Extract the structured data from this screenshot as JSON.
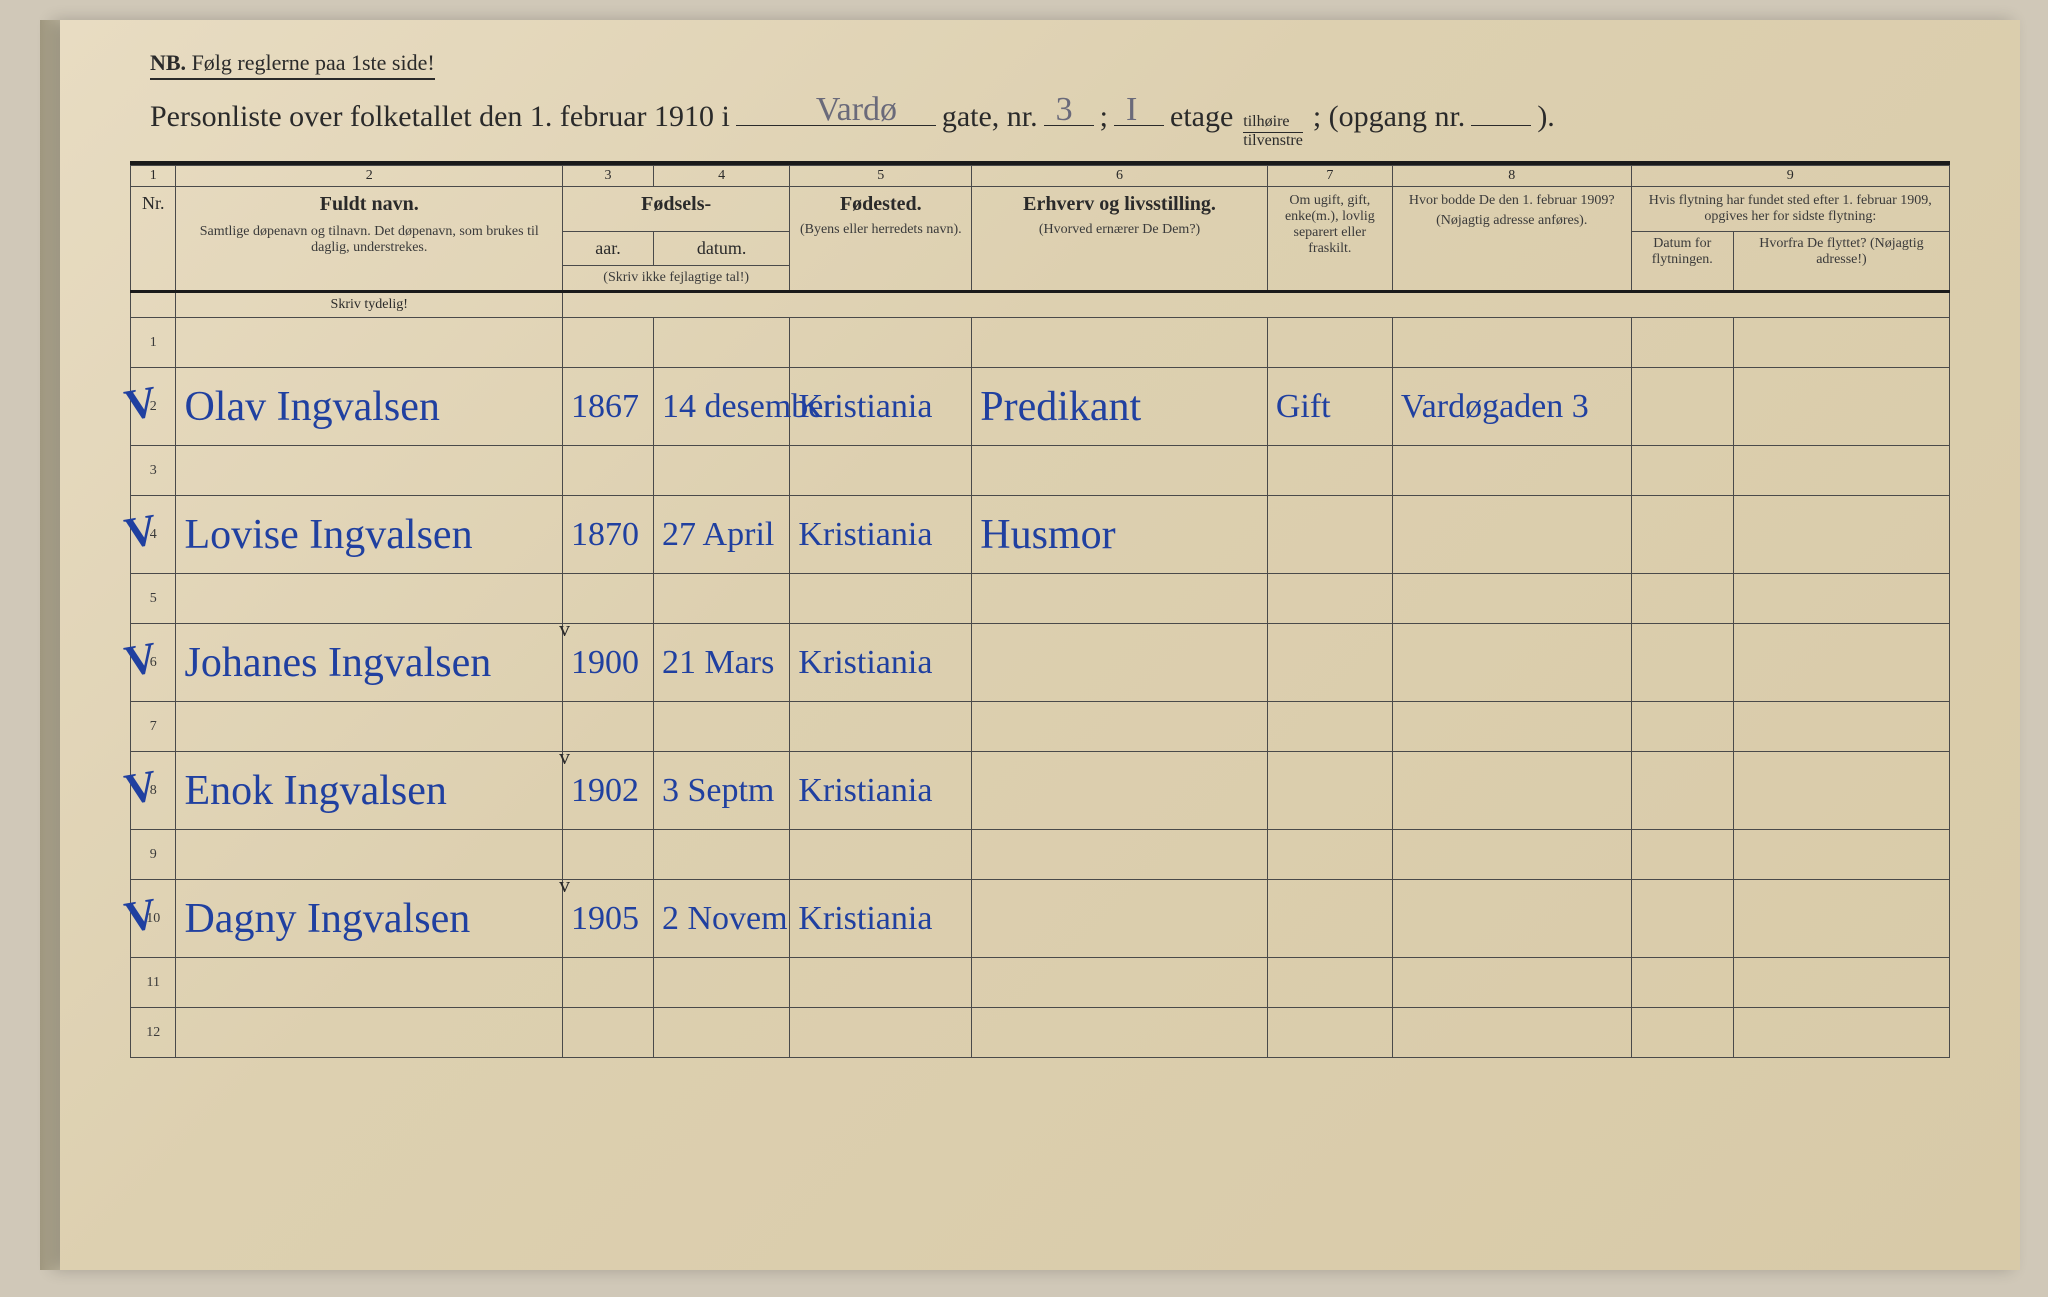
{
  "header": {
    "nb_prefix": "NB.",
    "nb_text": "Følg reglerne paa 1ste side!",
    "title_prefix": "Personliste over folketallet den 1. februar 1910 i",
    "street_hw": "Vardø",
    "gate_label": "gate, nr.",
    "gate_nr": "3",
    "semicolon": ";",
    "etage_nr": "I",
    "etage_label": "etage",
    "tilhoire": "tilhøire",
    "tilvenstre": "tilvenstre",
    "opgang": "; (opgang nr.",
    "opgang_end": ")."
  },
  "columns": {
    "c1": "1",
    "c2": "2",
    "c3": "3",
    "c4": "4",
    "c5": "5",
    "c6": "6",
    "c7": "7",
    "c8": "8",
    "c9": "9",
    "nr": "Nr.",
    "fuldt_navn": "Fuldt navn.",
    "navn_sub": "Samtlige døpenavn og tilnavn. Det døpenavn, som brukes til daglig, understrekes.",
    "fodsels": "Fødsels-",
    "aar": "aar.",
    "datum": "datum.",
    "aar_sub": "(Skriv ikke fejlagtige tal!)",
    "fodested": "Fødested.",
    "fodested_sub": "(Byens eller herredets navn).",
    "erhverv": "Erhverv og livsstilling.",
    "erhverv_sub": "(Hvorved ernærer De Dem?)",
    "ugift": "Om ugift, gift, enke(m.), lovlig separert eller fraskilt.",
    "bodde": "Hvor bodde De den 1. februar 1909?",
    "bodde_sub": "(Nøjagtig adresse anføres).",
    "flytning": "Hvis flytning har fundet sted efter 1. februar 1909, opgives her for sidste flytning:",
    "flyt_datum": "Datum for flytningen.",
    "flyt_hvorfra": "Hvorfra De flyttet? (Nøjagtig adresse!)",
    "skriv_tydelig": "Skriv tydelig!"
  },
  "rows": [
    {
      "nr": "1",
      "blank": true
    },
    {
      "nr": "2",
      "name": "Olav Ingvalsen",
      "year": "1867",
      "date": "14 desember",
      "place": "Kristiania",
      "occ": "Predikant",
      "status": "Gift",
      "addr": "Vardøgaden 3",
      "check": true
    },
    {
      "nr": "3",
      "blank": true
    },
    {
      "nr": "4",
      "name": "Lovise Ingvalsen",
      "year": "1870",
      "date": "27 April",
      "place": "Kristiania",
      "occ": "Husmor",
      "check": true
    },
    {
      "nr": "5",
      "blank": true
    },
    {
      "nr": "6",
      "name": "Johanes Ingvalsen",
      "year": "1900",
      "date": "21 Mars",
      "place": "Kristiania",
      "check": true,
      "ycheck": true
    },
    {
      "nr": "7",
      "blank": true
    },
    {
      "nr": "8",
      "name": "Enok Ingvalsen",
      "year": "1902",
      "date": "3 Septm",
      "place": "Kristiania",
      "check": true,
      "ycheck": true
    },
    {
      "nr": "9",
      "blank": true
    },
    {
      "nr": "10",
      "name": "Dagny Ingvalsen",
      "year": "1905",
      "date": "2 Novem",
      "place": "Kristiania",
      "check": true,
      "ycheck": true
    },
    {
      "nr": "11",
      "blank": true
    },
    {
      "nr": "12",
      "blank": true
    }
  ],
  "colors": {
    "paper": "#e0d4b8",
    "ink_print": "#2a2a2a",
    "ink_hand": "#2040a0"
  }
}
